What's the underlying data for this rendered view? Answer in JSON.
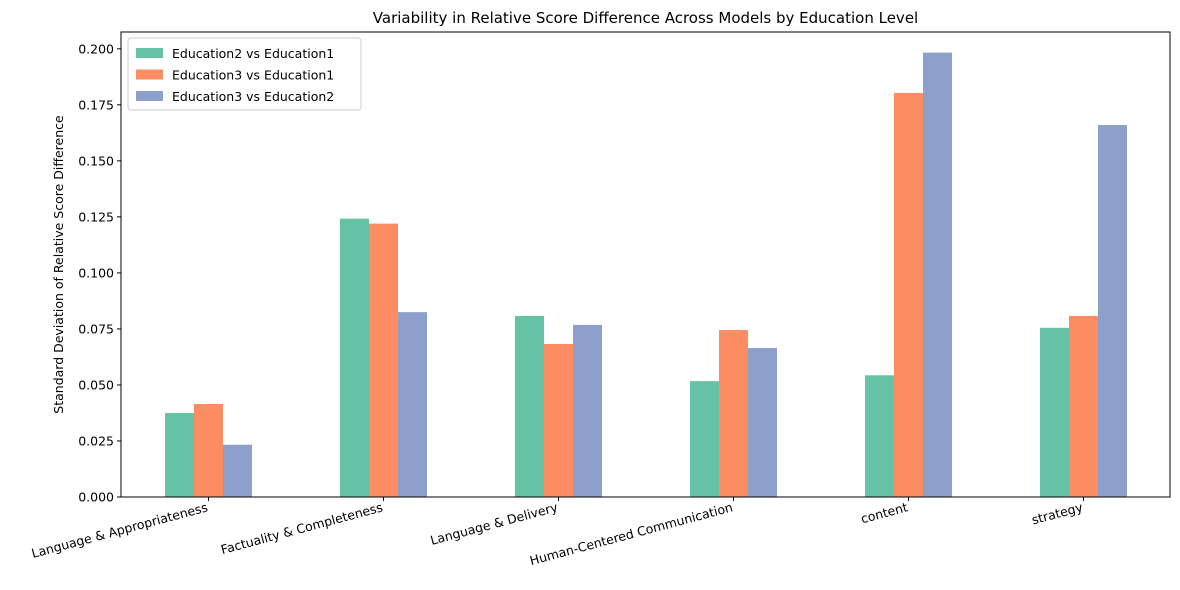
{
  "chart_data": {
    "type": "bar",
    "title": "Variability in Relative Score Difference Across Models by Education Level",
    "xlabel": "",
    "ylabel": "Standard Deviation of Relative Score Difference",
    "ylim": [
      0,
      0.2075
    ],
    "yticks": [
      0.0,
      0.025,
      0.05,
      0.075,
      0.1,
      0.125,
      0.15,
      0.175,
      0.2
    ],
    "ytick_labels": [
      "0.000",
      "0.025",
      "0.050",
      "0.075",
      "0.100",
      "0.125",
      "0.150",
      "0.175",
      "0.200"
    ],
    "categories": [
      "Language & Appropriateness",
      "Factuality & Completeness",
      "Language & Delivery",
      "Human-Centered Communication",
      "content",
      "strategy"
    ],
    "series": [
      {
        "name": "Education2 vs Education1",
        "color": "#66c2a5",
        "values": [
          0.0375,
          0.1242,
          0.0808,
          0.0517,
          0.0543,
          0.0755
        ]
      },
      {
        "name": "Education3 vs Education1",
        "color": "#fc8d62",
        "values": [
          0.0415,
          0.122,
          0.0683,
          0.0745,
          0.1803,
          0.0808
        ]
      },
      {
        "name": "Education3 vs Education2",
        "color": "#8da0cb",
        "values": [
          0.0233,
          0.0825,
          0.0768,
          0.0665,
          0.1983,
          0.166
        ]
      }
    ],
    "legend_position": "top-left",
    "grid": false
  }
}
